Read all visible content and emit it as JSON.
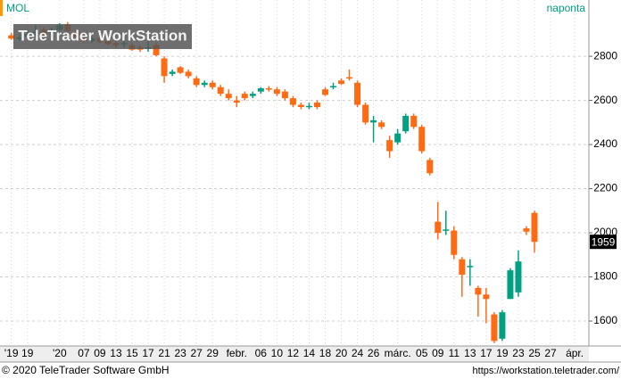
{
  "chart_data": {
    "type": "candlestick",
    "title": "MOL",
    "subtitle": "naponta",
    "watermark": "TeleTrader WorkStation",
    "footer_left": "© 2020 TeleTrader Software GmbH",
    "footer_right": "https://workstation.teletrader.com/",
    "categories": [
      "'19",
      null,
      "19",
      null,
      null,
      null,
      "'20",
      null,
      null,
      "07",
      null,
      "09",
      null,
      "13",
      null,
      "15",
      null,
      "17",
      null,
      "21",
      null,
      "23",
      null,
      "27",
      null,
      "29",
      null,
      null,
      "febr.",
      null,
      null,
      "06",
      null,
      "10",
      null,
      "12",
      null,
      "14",
      null,
      "18",
      null,
      "20",
      null,
      "24",
      null,
      "26",
      null,
      null,
      "márc.",
      null,
      null,
      "05",
      null,
      "09",
      null,
      "11",
      null,
      "13",
      null,
      "17",
      null,
      "19",
      null,
      "23",
      null,
      "25",
      null,
      "27",
      null,
      null,
      "ápr."
    ],
    "open": [
      2895,
      2880,
      2890,
      2905,
      2920,
      2905,
      2920,
      2945,
      2910,
      2885,
      2870,
      2880,
      2870,
      2860,
      2855,
      2850,
      2840,
      2835,
      2850,
      2790,
      2720,
      2750,
      2730,
      2700,
      2670,
      2680,
      2660,
      2630,
      2600,
      2630,
      2620,
      2640,
      2655,
      2650,
      2640,
      2610,
      2580,
      2570,
      2590,
      2650,
      2660,
      2690,
      2705,
      2680,
      2580,
      2500,
      2500,
      2420,
      2410,
      2460,
      2530,
      2480,
      2330,
      2050,
      2010,
      2010,
      1880,
      1845,
      1750,
      1720,
      1630,
      1520,
      1700,
      1730,
      2020,
      2090,
      null,
      null,
      null,
      null,
      null
    ],
    "high": [
      2905,
      2900,
      2920,
      2940,
      2930,
      2930,
      2950,
      2955,
      2920,
      2900,
      2890,
      2890,
      2880,
      2870,
      2870,
      2860,
      2850,
      2870,
      2860,
      2800,
      2740,
      2755,
      2740,
      2710,
      2690,
      2690,
      2670,
      2650,
      2620,
      2640,
      2640,
      2660,
      2665,
      2660,
      2650,
      2620,
      2590,
      2590,
      2600,
      2660,
      2680,
      2700,
      2740,
      2690,
      2590,
      2530,
      2510,
      2440,
      2470,
      2540,
      2540,
      2490,
      2340,
      2140,
      2100,
      2030,
      1890,
      1880,
      1760,
      1750,
      1640,
      1650,
      1840,
      1920,
      2030,
      2100,
      null,
      null,
      null,
      null,
      null
    ],
    "low": [
      2875,
      2870,
      2880,
      2890,
      2890,
      2895,
      2915,
      2910,
      2880,
      2860,
      2860,
      2860,
      2850,
      2840,
      2840,
      2825,
      2820,
      2820,
      2800,
      2680,
      2710,
      2720,
      2700,
      2660,
      2660,
      2650,
      2620,
      2600,
      2570,
      2600,
      2610,
      2630,
      2640,
      2620,
      2600,
      2570,
      2560,
      2560,
      2560,
      2620,
      2650,
      2670,
      2690,
      2570,
      2490,
      2410,
      2470,
      2340,
      2400,
      2450,
      2470,
      2360,
      2260,
      1970,
      1990,
      1880,
      1710,
      1760,
      1620,
      1590,
      1500,
      1510,
      1700,
      1710,
      1990,
      1910,
      null,
      null,
      null,
      null,
      null
    ],
    "close": [
      2880,
      2885,
      2900,
      2910,
      2895,
      2915,
      2940,
      2915,
      2890,
      2870,
      2880,
      2865,
      2855,
      2850,
      2860,
      2830,
      2830,
      2840,
      2805,
      2710,
      2730,
      2725,
      2710,
      2670,
      2680,
      2660,
      2630,
      2610,
      2590,
      2610,
      2630,
      2655,
      2650,
      2630,
      2610,
      2580,
      2570,
      2575,
      2570,
      2625,
      2665,
      2675,
      2700,
      2580,
      2500,
      2510,
      2480,
      2370,
      2450,
      2530,
      2480,
      2370,
      2270,
      2000,
      2015,
      1900,
      1810,
      1850,
      1720,
      1700,
      1510,
      1640,
      1830,
      1870,
      2005,
      1959,
      null,
      null,
      null,
      null,
      null
    ],
    "up_color": "#00a082",
    "down_color": "#ff6a13",
    "flat_color": "#999999",
    "ylim": [
      1495,
      3055
    ],
    "yticks": [
      1600,
      1800,
      2000,
      2200,
      2400,
      2600,
      2800
    ],
    "grid": true
  }
}
